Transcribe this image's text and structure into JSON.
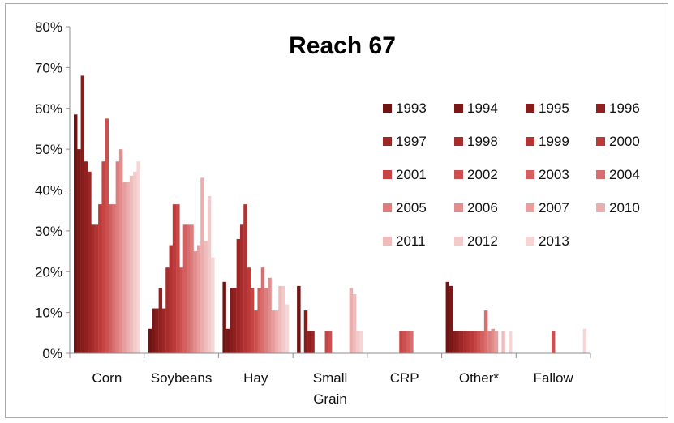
{
  "chart_data": {
    "type": "bar",
    "title": "Reach 67",
    "xlabel": "",
    "ylabel": "",
    "ylim": [
      0,
      80
    ],
    "y_tick_labels": [
      "0%",
      "10%",
      "20%",
      "30%",
      "40%",
      "50%",
      "60%",
      "70%",
      "80%"
    ],
    "y_tick_values": [
      0,
      10,
      20,
      30,
      40,
      50,
      60,
      70,
      80
    ],
    "grid": false,
    "legend_position": "right",
    "categories": [
      "Corn",
      "Soybeans",
      "Hay",
      "Small Grain",
      "CRP",
      "Other*",
      "Fallow"
    ],
    "series": [
      {
        "name": "1993",
        "color": "#6e1414",
        "values": [
          58.5,
          6,
          17.5,
          16.5,
          0,
          17.5,
          0
        ]
      },
      {
        "name": "1994",
        "color": "#7a1818",
        "values": [
          50,
          11,
          6,
          0,
          0,
          16.5,
          0
        ]
      },
      {
        "name": "1995",
        "color": "#861c1c",
        "values": [
          68,
          11,
          16,
          10.5,
          0,
          5.5,
          0
        ]
      },
      {
        "name": "1996",
        "color": "#912121",
        "values": [
          47,
          16,
          16,
          5.5,
          0,
          5.5,
          0
        ]
      },
      {
        "name": "1997",
        "color": "#9d2626",
        "values": [
          44.5,
          11,
          28,
          5.5,
          0,
          5.5,
          0
        ]
      },
      {
        "name": "1998",
        "color": "#a82c2c",
        "values": [
          31.5,
          21,
          31.5,
          0,
          0,
          5.5,
          0
        ]
      },
      {
        "name": "1999",
        "color": "#b33333",
        "values": [
          31.5,
          26.5,
          36.5,
          0,
          0,
          5.5,
          0
        ]
      },
      {
        "name": "2000",
        "color": "#bd3a3a",
        "values": [
          36.5,
          36.5,
          21,
          0,
          0,
          5.5,
          0
        ]
      },
      {
        "name": "2001",
        "color": "#c64444",
        "values": [
          47,
          36.5,
          16,
          5.5,
          5.5,
          5.5,
          0
        ]
      },
      {
        "name": "2002",
        "color": "#cd5050",
        "values": [
          57.5,
          21,
          10.5,
          5.5,
          5.5,
          5.5,
          5.5
        ]
      },
      {
        "name": "2003",
        "color": "#d35f5f",
        "values": [
          36.5,
          31.5,
          16,
          0,
          5.5,
          5.5,
          0
        ]
      },
      {
        "name": "2004",
        "color": "#d86e6e",
        "values": [
          36.5,
          31.5,
          21,
          0,
          5.5,
          10.5,
          0
        ]
      },
      {
        "name": "2005",
        "color": "#dd7e7e",
        "values": [
          47,
          31.5,
          16,
          0,
          0,
          5.5,
          0
        ]
      },
      {
        "name": "2006",
        "color": "#e28e8e",
        "values": [
          50,
          25,
          18.5,
          0,
          0,
          6,
          0
        ]
      },
      {
        "name": "2007",
        "color": "#e79e9e",
        "values": [
          42,
          26.5,
          10.5,
          0,
          0,
          5.5,
          0
        ]
      },
      {
        "name": "2010",
        "color": "#ebadad",
        "values": [
          42,
          43,
          10.5,
          16,
          0,
          0,
          0
        ]
      },
      {
        "name": "2011",
        "color": "#efbcbc",
        "values": [
          43.5,
          27.5,
          16.5,
          14.5,
          0,
          5.5,
          0
        ]
      },
      {
        "name": "2012",
        "color": "#f2caca",
        "values": [
          44.5,
          38.5,
          16.5,
          5.5,
          0,
          0,
          0
        ]
      },
      {
        "name": "2013",
        "color": "#f5d6d6",
        "values": [
          47,
          23.5,
          12,
          5.5,
          0,
          5.5,
          6
        ]
      }
    ]
  }
}
